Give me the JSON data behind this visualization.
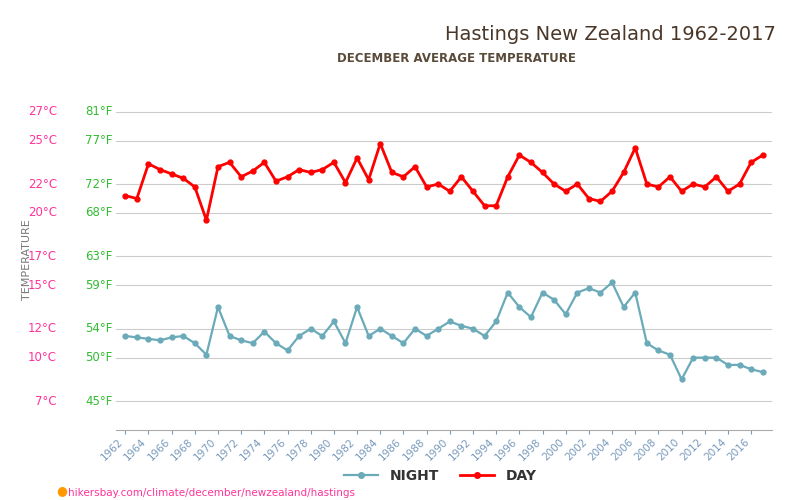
{
  "title": "Hastings New Zealand 1962-2017",
  "subtitle": "DECEMBER AVERAGE TEMPERATURE",
  "ylabel": "TEMPERATURE",
  "footer": "hikersbay.com/climate/december/newzealand/hastings",
  "years": [
    1962,
    1963,
    1964,
    1965,
    1966,
    1967,
    1968,
    1969,
    1970,
    1971,
    1972,
    1973,
    1974,
    1975,
    1976,
    1977,
    1978,
    1979,
    1980,
    1981,
    1982,
    1983,
    1984,
    1985,
    1986,
    1987,
    1988,
    1989,
    1990,
    1991,
    1992,
    1993,
    1994,
    1995,
    1996,
    1997,
    1998,
    1999,
    2000,
    2001,
    2002,
    2003,
    2004,
    2005,
    2006,
    2007,
    2008,
    2009,
    2010,
    2011,
    2012,
    2013,
    2014,
    2015,
    2016,
    2017
  ],
  "day": [
    21.2,
    21.0,
    23.4,
    23.0,
    22.7,
    22.4,
    21.8,
    19.5,
    23.2,
    23.5,
    22.5,
    22.9,
    23.5,
    22.2,
    22.5,
    23.0,
    22.8,
    23.0,
    23.5,
    22.1,
    23.8,
    22.3,
    24.8,
    22.8,
    22.5,
    23.2,
    21.8,
    22.0,
    21.5,
    22.5,
    21.5,
    20.5,
    20.5,
    22.5,
    24.0,
    23.5,
    22.8,
    22.0,
    21.5,
    22.0,
    21.0,
    20.8,
    21.5,
    22.8,
    24.5,
    22.0,
    21.8,
    22.5,
    21.5,
    22.0,
    21.8,
    22.5,
    21.5,
    22.0,
    23.5,
    24.0
  ],
  "night": [
    11.5,
    11.4,
    11.3,
    11.2,
    11.4,
    11.5,
    11.0,
    10.2,
    13.5,
    11.5,
    11.2,
    11.0,
    11.8,
    11.0,
    10.5,
    11.5,
    12.0,
    11.5,
    12.5,
    11.0,
    13.5,
    11.5,
    12.0,
    11.5,
    11.0,
    12.0,
    11.5,
    12.0,
    12.5,
    12.2,
    12.0,
    11.5,
    12.5,
    14.5,
    13.5,
    12.8,
    14.5,
    14.0,
    13.0,
    14.5,
    14.8,
    14.5,
    15.2,
    13.5,
    14.5,
    11.0,
    10.5,
    10.2,
    8.5,
    10.0,
    10.0,
    10.0,
    9.5,
    9.5,
    9.2,
    9.0
  ],
  "yticks_c": [
    7,
    10,
    12,
    15,
    17,
    20,
    22,
    25,
    27
  ],
  "yticks_f": [
    45,
    50,
    54,
    59,
    63,
    68,
    72,
    77,
    81
  ],
  "xticks": [
    1962,
    1964,
    1966,
    1968,
    1970,
    1972,
    1974,
    1976,
    1978,
    1980,
    1982,
    1984,
    1986,
    1988,
    1990,
    1992,
    1994,
    1996,
    1998,
    2000,
    2002,
    2004,
    2006,
    2008,
    2010,
    2012,
    2014,
    2016
  ],
  "day_color": "#ff0000",
  "night_color": "#6aaab9",
  "title_color": "#4a3728",
  "subtitle_color": "#5a4a3a",
  "ylabel_color": "#777777",
  "ytick_color_c": "#ff3399",
  "ytick_color_f": "#33bb33",
  "xtick_color": "#7799bb",
  "grid_color": "#cccccc",
  "bg_color": "#ffffff",
  "footer_color": "#ff3399",
  "ylim": [
    5,
    28.5
  ]
}
